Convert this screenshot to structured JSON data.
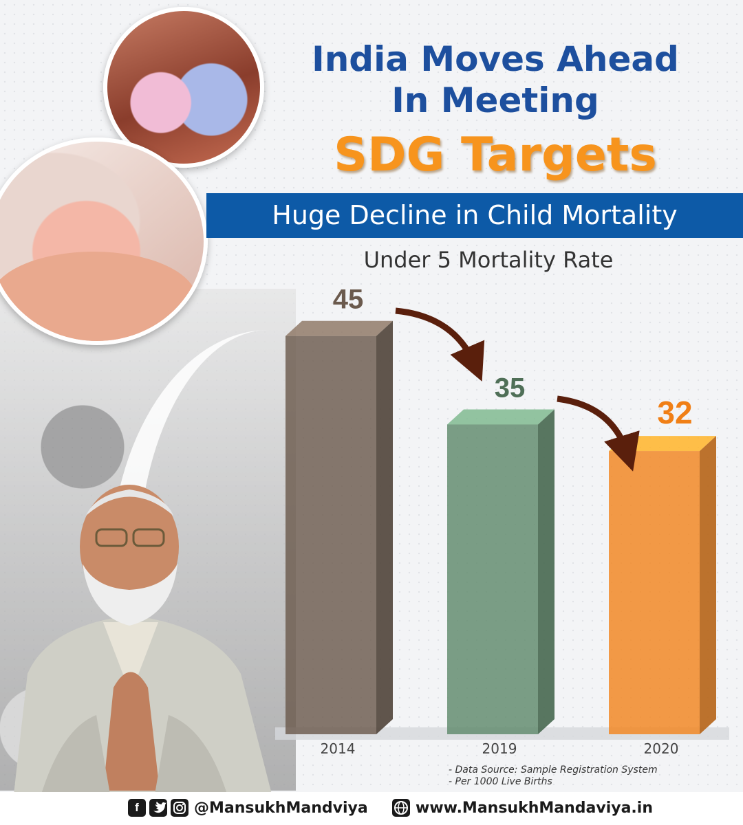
{
  "header": {
    "title_line1": "India Moves Ahead",
    "title_line2": "In Meeting",
    "title_highlight": "SDG Targets"
  },
  "banner": {
    "text": "Huge Decline in Child Mortality"
  },
  "chart_data": {
    "type": "bar",
    "title": "Under 5 Mortality Rate",
    "categories": [
      "2014",
      "2019",
      "2020"
    ],
    "values": [
      45,
      35,
      32
    ],
    "colors": [
      "#6b5a4d",
      "#5f8a6b",
      "#f2851e"
    ],
    "label_colors": [
      "#6b5a4d",
      "#4f6f57",
      "#f07f16"
    ],
    "ylim": [
      0,
      55
    ],
    "arrows": "decline between consecutive bars"
  },
  "notes": {
    "source": "- Data Source: Sample Registration System",
    "unit": "- Per 1000 Live Births"
  },
  "footer": {
    "icons": [
      "facebook-icon",
      "twitter-icon",
      "instagram-icon",
      "globe-icon"
    ],
    "handle": "@MansukhMandviya",
    "website": "www.MansukhMandaviya.in"
  },
  "colors": {
    "primary_blue": "#0d5aa7",
    "accent_orange": "#f7941d"
  }
}
